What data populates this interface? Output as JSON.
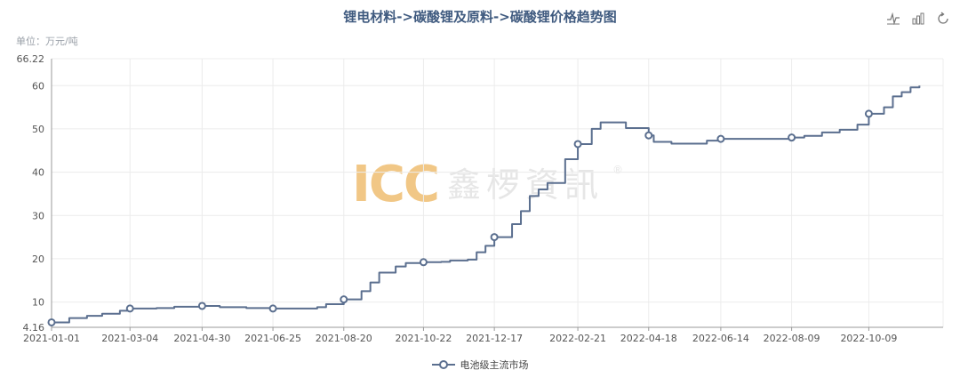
{
  "title": "锂电材料->碳酸锂及原料->碳酸锂价格趋势图",
  "unit_label": "单位：万元/吨",
  "toolbox": {
    "line_icon": "line-chart-icon",
    "bar_icon": "bar-chart-icon",
    "restore_icon": "restore-icon"
  },
  "watermark": {
    "logo": "ICC",
    "brand": "鑫椤資訊",
    "reg": "®"
  },
  "chart_data": {
    "type": "line",
    "title": "锂电材料->碳酸锂及原料->碳酸锂价格趋势图",
    "ylabel": "单位：万元/吨",
    "xlabel": "",
    "ylim": [
      4.16,
      66.22
    ],
    "yticks": [
      "4.16",
      "10",
      "20",
      "30",
      "40",
      "50",
      "60",
      "66.22"
    ],
    "xtick_labels": [
      "2021-01-01",
      "2021-03-04",
      "2021-04-30",
      "2021-06-25",
      "2021-08-20",
      "2021-10-22",
      "2021-12-17",
      "2022-02-21",
      "2022-04-18",
      "2022-06-14",
      "2022-08-09",
      "2022-10-09"
    ],
    "grid": true,
    "legend_position": "bottom",
    "line_color": "#5b6f8f",
    "series": [
      {
        "name": "电池级主流市场",
        "points": [
          [
            "2021-01-01",
            5.3
          ],
          [
            "2021-01-15",
            6.3
          ],
          [
            "2021-01-29",
            6.8
          ],
          [
            "2021-02-10",
            7.3
          ],
          [
            "2021-02-24",
            8.0
          ],
          [
            "2021-03-04",
            8.5
          ],
          [
            "2021-03-25",
            8.6
          ],
          [
            "2021-04-08",
            8.9
          ],
          [
            "2021-04-30",
            9.1
          ],
          [
            "2021-05-14",
            8.8
          ],
          [
            "2021-06-04",
            8.6
          ],
          [
            "2021-06-25",
            8.5
          ],
          [
            "2021-07-16",
            8.5
          ],
          [
            "2021-07-30",
            8.8
          ],
          [
            "2021-08-06",
            9.5
          ],
          [
            "2021-08-20",
            10.6
          ],
          [
            "2021-09-03",
            12.5
          ],
          [
            "2021-09-10",
            14.5
          ],
          [
            "2021-09-17",
            16.8
          ],
          [
            "2021-09-30",
            18.2
          ],
          [
            "2021-10-08",
            19.0
          ],
          [
            "2021-10-22",
            19.2
          ],
          [
            "2021-11-05",
            19.3
          ],
          [
            "2021-11-12",
            19.6
          ],
          [
            "2021-11-26",
            19.8
          ],
          [
            "2021-12-03",
            21.5
          ],
          [
            "2021-12-10",
            23.0
          ],
          [
            "2021-12-17",
            25.0
          ],
          [
            "2021-12-31",
            28.0
          ],
          [
            "2022-01-07",
            31.0
          ],
          [
            "2022-01-14",
            34.5
          ],
          [
            "2022-01-21",
            36.0
          ],
          [
            "2022-01-28",
            37.5
          ],
          [
            "2022-02-11",
            43.0
          ],
          [
            "2022-02-21",
            46.5
          ],
          [
            "2022-03-04",
            50.0
          ],
          [
            "2022-03-11",
            51.5
          ],
          [
            "2022-03-25",
            51.5
          ],
          [
            "2022-03-31",
            50.2
          ],
          [
            "2022-04-08",
            50.2
          ],
          [
            "2022-04-18",
            48.5
          ],
          [
            "2022-04-22",
            47.0
          ],
          [
            "2022-05-06",
            46.6
          ],
          [
            "2022-05-27",
            46.6
          ],
          [
            "2022-06-03",
            47.3
          ],
          [
            "2022-06-14",
            47.7
          ],
          [
            "2022-07-08",
            47.7
          ],
          [
            "2022-08-09",
            48.0
          ],
          [
            "2022-08-19",
            48.4
          ],
          [
            "2022-09-02",
            49.2
          ],
          [
            "2022-09-16",
            49.8
          ],
          [
            "2022-09-30",
            51.0
          ],
          [
            "2022-10-09",
            53.5
          ],
          [
            "2022-10-21",
            55.0
          ],
          [
            "2022-10-28",
            57.5
          ],
          [
            "2022-11-04",
            58.5
          ],
          [
            "2022-11-11",
            59.6
          ],
          [
            "2022-11-18",
            60.0
          ]
        ],
        "marker_dates": [
          "2021-01-01",
          "2021-03-04",
          "2021-04-30",
          "2021-06-25",
          "2021-08-20",
          "2021-10-22",
          "2021-12-17",
          "2022-02-21",
          "2022-04-18",
          "2022-06-14",
          "2022-08-09",
          "2022-10-09"
        ]
      }
    ]
  }
}
